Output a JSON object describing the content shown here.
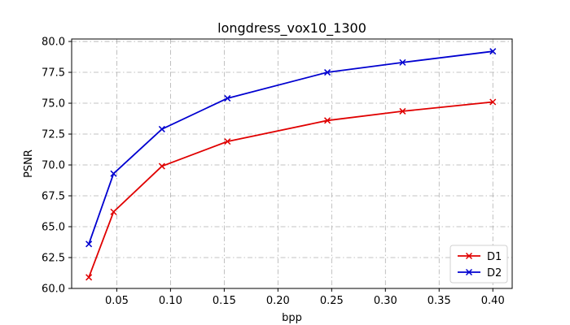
{
  "chart_data": {
    "type": "line",
    "title": "longdress_vox10_1300",
    "xlabel": "bpp",
    "ylabel": "PSNR",
    "xlim": [
      0.008,
      0.418
    ],
    "ylim": [
      60.0,
      80.2
    ],
    "xticks": [
      0.05,
      0.1,
      0.15,
      0.2,
      0.25,
      0.3,
      0.35,
      0.4
    ],
    "xtick_labels": [
      "0.05",
      "0.10",
      "0.15",
      "0.20",
      "0.25",
      "0.30",
      "0.35",
      "0.40"
    ],
    "yticks": [
      60.0,
      62.5,
      65.0,
      67.5,
      70.0,
      72.5,
      75.0,
      77.5,
      80.0
    ],
    "ytick_labels": [
      "60.0",
      "62.5",
      "65.0",
      "67.5",
      "70.0",
      "72.5",
      "75.0",
      "77.5",
      "80.0"
    ],
    "grid": true,
    "legend_position": "lower-right",
    "marker": "x",
    "series": [
      {
        "name": "D1",
        "color": "#e00000",
        "x": [
          0.024,
          0.047,
          0.092,
          0.153,
          0.246,
          0.316,
          0.4
        ],
        "y": [
          60.9,
          66.2,
          69.9,
          71.9,
          73.6,
          74.35,
          75.1
        ]
      },
      {
        "name": "D2",
        "color": "#0000d0",
        "x": [
          0.024,
          0.047,
          0.092,
          0.153,
          0.246,
          0.316,
          0.4
        ],
        "y": [
          63.6,
          69.3,
          72.9,
          75.4,
          77.5,
          78.3,
          79.2
        ]
      }
    ]
  }
}
